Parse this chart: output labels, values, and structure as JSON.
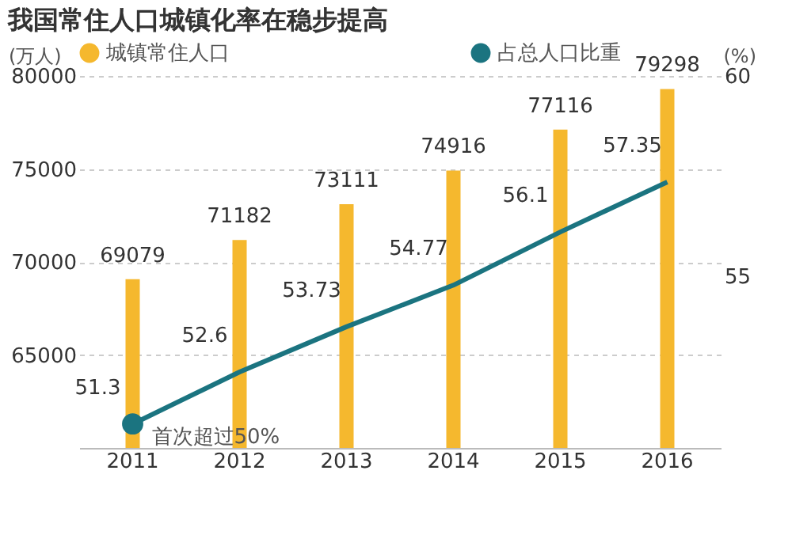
{
  "chart_data": {
    "type": "bar",
    "title": "我国常住人口城镇化率在稳步提高",
    "ylabel": "(万人)",
    "y2label": "(%)",
    "categories": [
      "2011",
      "2012",
      "2013",
      "2014",
      "2015",
      "2016"
    ],
    "series": [
      {
        "name": "城镇常住人口",
        "color": "#f5b82e",
        "values": [
          69079,
          71182,
          73111,
          74916,
          77116,
          79298
        ]
      },
      {
        "name": "占总人口比重",
        "type": "line",
        "axis": "y2",
        "color": "#1b7480",
        "values": [
          51.3,
          52.6,
          53.73,
          54.77,
          56.1,
          57.35
        ]
      }
    ],
    "ylim": [
      60000,
      80000
    ],
    "yticks": [
      65000,
      70000,
      75000,
      80000
    ],
    "y2lim": [
      50.7,
      60
    ],
    "y2ticks": [
      55,
      60
    ],
    "grid": "y",
    "legend": "top",
    "data_labels": true,
    "annotations": [
      "首次超过50%"
    ]
  }
}
